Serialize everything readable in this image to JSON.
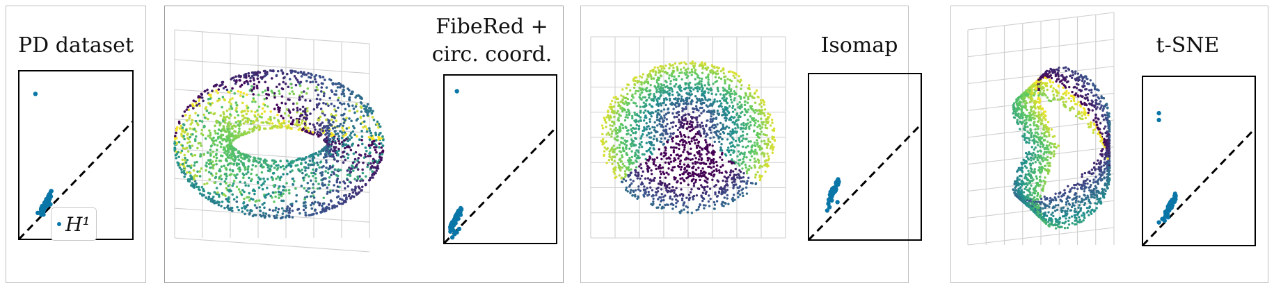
{
  "chart_data": [
    {
      "type": "scatter",
      "title": "PD dataset",
      "legend": [
        "H¹"
      ],
      "legend_position": "bottom-right",
      "series": [
        {
          "name": "H¹",
          "values": [
            [
              0.15,
              0.86
            ],
            [
              0.17,
              0.16
            ],
            [
              0.2,
              0.17
            ],
            [
              0.23,
              0.19
            ],
            [
              0.25,
              0.2
            ],
            [
              0.28,
              0.21
            ],
            [
              0.22,
              0.15
            ]
          ]
        }
      ]
    },
    {
      "type": "scatter",
      "title": "FibeRed + circ. coord.",
      "embedding": "3d-scatter-colored-viridis",
      "series": [
        {
          "values": [
            [
              0.12,
              0.9
            ],
            [
              0.08,
              0.04
            ],
            [
              0.1,
              0.06
            ],
            [
              0.12,
              0.07
            ],
            [
              0.14,
              0.09
            ],
            [
              0.09,
              0.08
            ]
          ]
        }
      ]
    },
    {
      "type": "scatter",
      "title": "Isomap",
      "embedding": "3d-scatter-colored-viridis",
      "series": [
        {
          "values": [
            [
              0.18,
              0.22
            ],
            [
              0.2,
              0.26
            ],
            [
              0.22,
              0.28
            ],
            [
              0.24,
              0.3
            ],
            [
              0.17,
              0.18
            ],
            [
              0.19,
              0.2
            ],
            [
              0.26,
              0.23
            ],
            [
              0.21,
              0.24
            ]
          ]
        }
      ]
    },
    {
      "type": "scatter",
      "title": "t-SNE",
      "embedding": "3d-scatter-colored-viridis",
      "series": [
        {
          "values": [
            [
              0.15,
              0.78
            ],
            [
              0.15,
              0.74
            ],
            [
              0.15,
              0.14
            ],
            [
              0.18,
              0.16
            ],
            [
              0.21,
              0.18
            ],
            [
              0.24,
              0.21
            ],
            [
              0.2,
              0.15
            ],
            [
              0.23,
              0.17
            ]
          ]
        }
      ]
    }
  ],
  "colors": {
    "pd_point": "#0a76a8",
    "viridis": [
      "#440154",
      "#3b528b",
      "#21918c",
      "#5ec962",
      "#fde725"
    ]
  }
}
